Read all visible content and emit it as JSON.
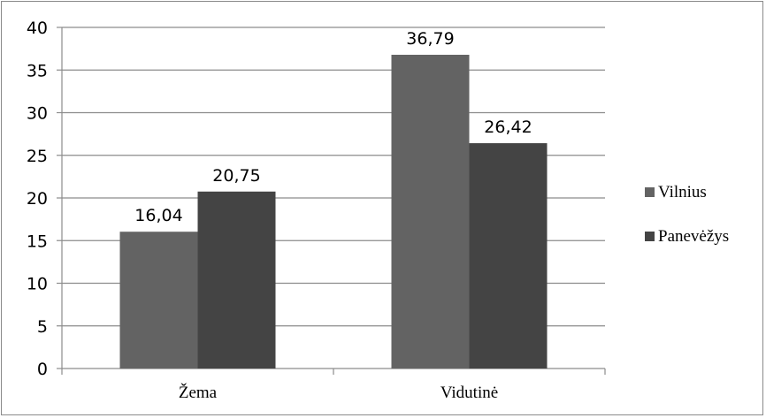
{
  "chart_data": {
    "type": "bar",
    "categories": [
      "Žema",
      "Vidutinė"
    ],
    "series": [
      {
        "name": "Vilnius",
        "values": [
          16.04,
          36.79
        ],
        "labels": [
          "16,04",
          "36,79"
        ],
        "color": "#636363"
      },
      {
        "name": "Panevėžys",
        "values": [
          20.75,
          26.42
        ],
        "labels": [
          "20,75",
          "26,42"
        ],
        "color": "#444444"
      }
    ],
    "title": "",
    "xlabel": "",
    "ylabel": "",
    "ylim": [
      0,
      40
    ],
    "yticks": [
      "0",
      "5",
      "10",
      "15",
      "20",
      "25",
      "30",
      "35",
      "40"
    ],
    "grid": true,
    "legend": "right"
  }
}
